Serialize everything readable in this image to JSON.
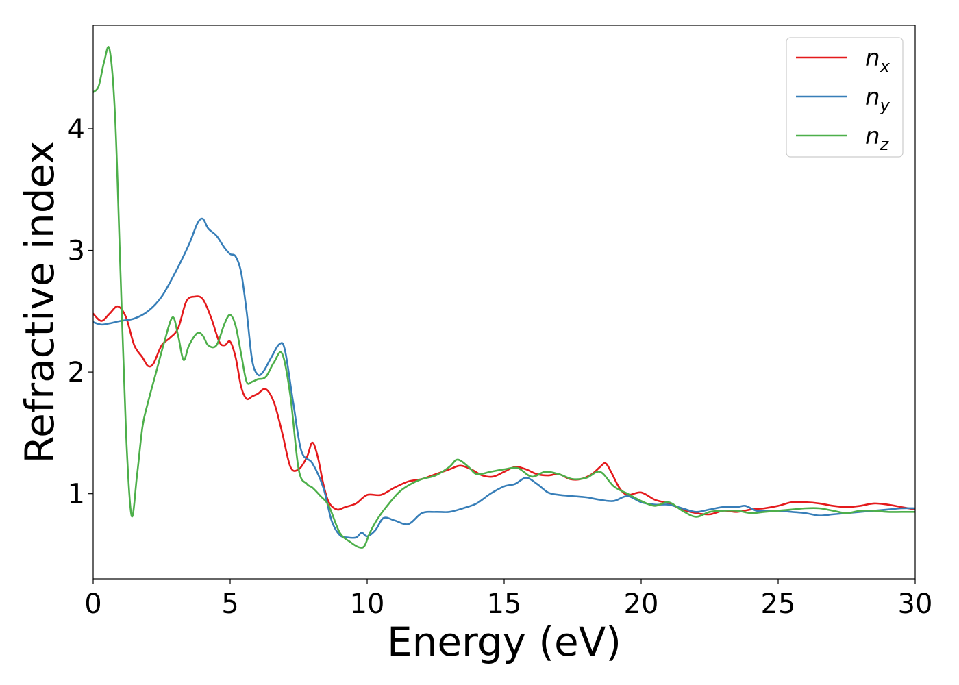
{
  "chart_data": {
    "type": "line",
    "xlabel": "Energy (eV)",
    "ylabel": "Refractive index",
    "xlim": [
      0,
      30
    ],
    "ylim": [
      0.3,
      4.85
    ],
    "xticks": [
      0,
      5,
      10,
      15,
      20,
      25,
      30
    ],
    "yticks": [
      1,
      2,
      3,
      4
    ],
    "grid": false,
    "legend": "top-right",
    "series": [
      {
        "name": "n_x",
        "label_main": "n",
        "label_sub": "x",
        "color": "#e41a1c",
        "x": [
          0,
          0.3,
          0.6,
          0.9,
          1.2,
          1.5,
          1.8,
          2.0,
          2.2,
          2.5,
          2.8,
          3.1,
          3.4,
          3.7,
          4.0,
          4.3,
          4.6,
          4.8,
          5.0,
          5.2,
          5.4,
          5.6,
          5.8,
          6.0,
          6.3,
          6.6,
          6.9,
          7.2,
          7.5,
          7.8,
          8.0,
          8.2,
          8.4,
          8.6,
          8.9,
          9.2,
          9.6,
          10.0,
          10.5,
          11.0,
          11.5,
          12.0,
          12.5,
          13.0,
          13.4,
          13.8,
          14.2,
          14.6,
          15.0,
          15.4,
          15.8,
          16.2,
          16.6,
          17.0,
          17.4,
          17.8,
          18.2,
          18.5,
          18.7,
          18.9,
          19.2,
          19.5,
          20.0,
          20.5,
          21.0,
          21.5,
          22.0,
          22.5,
          23.0,
          23.5,
          24.0,
          24.5,
          25.0,
          25.5,
          26.0,
          26.5,
          27.0,
          27.5,
          28.0,
          28.5,
          29.0,
          29.5,
          30.0
        ],
        "y": [
          2.48,
          2.42,
          2.48,
          2.54,
          2.45,
          2.22,
          2.12,
          2.05,
          2.07,
          2.22,
          2.28,
          2.36,
          2.58,
          2.62,
          2.6,
          2.45,
          2.25,
          2.22,
          2.25,
          2.12,
          1.88,
          1.78,
          1.8,
          1.82,
          1.86,
          1.75,
          1.5,
          1.22,
          1.2,
          1.3,
          1.42,
          1.3,
          1.08,
          0.93,
          0.87,
          0.89,
          0.92,
          0.99,
          0.99,
          1.05,
          1.1,
          1.12,
          1.16,
          1.2,
          1.23,
          1.2,
          1.15,
          1.14,
          1.18,
          1.22,
          1.2,
          1.16,
          1.15,
          1.16,
          1.12,
          1.12,
          1.16,
          1.22,
          1.25,
          1.18,
          1.05,
          0.99,
          1.01,
          0.95,
          0.92,
          0.87,
          0.84,
          0.83,
          0.86,
          0.85,
          0.87,
          0.88,
          0.9,
          0.93,
          0.93,
          0.92,
          0.9,
          0.89,
          0.9,
          0.92,
          0.91,
          0.89,
          0.87
        ]
      },
      {
        "name": "n_y",
        "label_main": "n",
        "label_sub": "y",
        "color": "#377eb8",
        "x": [
          0,
          0.3,
          0.6,
          1.0,
          1.5,
          2.0,
          2.5,
          3.0,
          3.5,
          3.8,
          4.0,
          4.2,
          4.5,
          4.8,
          5.0,
          5.2,
          5.4,
          5.6,
          5.8,
          6.0,
          6.2,
          6.5,
          6.8,
          7.0,
          7.3,
          7.6,
          8.0,
          8.4,
          8.7,
          9.0,
          9.3,
          9.6,
          9.8,
          10.0,
          10.3,
          10.6,
          11.0,
          11.5,
          12.0,
          12.5,
          13.0,
          13.5,
          14.0,
          14.5,
          15.0,
          15.4,
          15.8,
          16.2,
          16.6,
          17.0,
          17.5,
          18.0,
          18.5,
          19.0,
          19.5,
          20.0,
          20.5,
          21.0,
          21.5,
          22.0,
          22.5,
          23.0,
          23.5,
          23.8,
          24.2,
          24.5,
          25.0,
          25.5,
          26.0,
          26.5,
          27.0,
          27.5,
          28.0,
          28.5,
          29.0,
          29.5,
          30.0
        ],
        "y": [
          2.41,
          2.39,
          2.4,
          2.42,
          2.44,
          2.5,
          2.62,
          2.82,
          3.05,
          3.22,
          3.26,
          3.18,
          3.12,
          3.02,
          2.97,
          2.95,
          2.82,
          2.5,
          2.1,
          1.98,
          2.0,
          2.12,
          2.23,
          2.18,
          1.75,
          1.35,
          1.25,
          1.05,
          0.78,
          0.66,
          0.64,
          0.64,
          0.68,
          0.65,
          0.7,
          0.8,
          0.78,
          0.75,
          0.84,
          0.85,
          0.85,
          0.88,
          0.92,
          1.0,
          1.06,
          1.08,
          1.13,
          1.08,
          1.01,
          0.99,
          0.98,
          0.97,
          0.95,
          0.94,
          0.98,
          0.93,
          0.91,
          0.91,
          0.88,
          0.85,
          0.87,
          0.89,
          0.89,
          0.9,
          0.86,
          0.86,
          0.86,
          0.85,
          0.84,
          0.82,
          0.83,
          0.84,
          0.85,
          0.86,
          0.87,
          0.88,
          0.88
        ]
      },
      {
        "name": "n_z",
        "label_main": "n",
        "label_sub": "z",
        "color": "#4daf4a",
        "x": [
          0,
          0.2,
          0.4,
          0.6,
          0.8,
          1.0,
          1.2,
          1.4,
          1.6,
          1.8,
          2.0,
          2.3,
          2.6,
          2.9,
          3.1,
          3.3,
          3.5,
          3.8,
          4.0,
          4.2,
          4.5,
          4.8,
          5.0,
          5.2,
          5.4,
          5.6,
          5.8,
          6.0,
          6.3,
          6.6,
          6.9,
          7.2,
          7.5,
          7.8,
          8.0,
          8.3,
          8.6,
          9.0,
          9.4,
          9.7,
          9.9,
          10.1,
          10.4,
          10.8,
          11.2,
          11.6,
          12.0,
          12.5,
          13.0,
          13.3,
          13.7,
          14.0,
          14.5,
          15.0,
          15.5,
          16.0,
          16.5,
          17.0,
          17.5,
          18.0,
          18.5,
          19.0,
          19.5,
          20.0,
          20.5,
          21.0,
          21.5,
          22.0,
          22.5,
          23.0,
          23.5,
          24.0,
          24.5,
          25.0,
          25.5,
          26.0,
          26.5,
          27.0,
          27.5,
          28.0,
          28.5,
          29.0,
          29.5,
          30.0
        ],
        "y": [
          4.3,
          4.35,
          4.55,
          4.65,
          4.1,
          2.8,
          1.5,
          0.82,
          1.15,
          1.55,
          1.75,
          2.0,
          2.25,
          2.45,
          2.3,
          2.1,
          2.22,
          2.32,
          2.3,
          2.22,
          2.22,
          2.4,
          2.47,
          2.38,
          2.15,
          1.92,
          1.92,
          1.94,
          1.96,
          2.08,
          2.15,
          1.8,
          1.2,
          1.08,
          1.05,
          0.98,
          0.9,
          0.68,
          0.6,
          0.56,
          0.57,
          0.68,
          0.8,
          0.92,
          1.02,
          1.08,
          1.12,
          1.15,
          1.22,
          1.28,
          1.22,
          1.16,
          1.18,
          1.2,
          1.21,
          1.14,
          1.18,
          1.16,
          1.12,
          1.13,
          1.18,
          1.06,
          1.0,
          0.94,
          0.9,
          0.93,
          0.86,
          0.81,
          0.85,
          0.86,
          0.86,
          0.84,
          0.85,
          0.86,
          0.87,
          0.88,
          0.88,
          0.86,
          0.84,
          0.86,
          0.86,
          0.85,
          0.85,
          0.85
        ]
      }
    ]
  }
}
